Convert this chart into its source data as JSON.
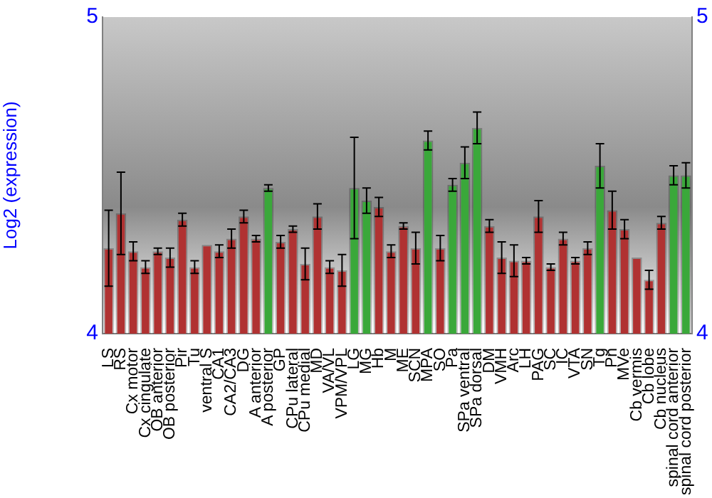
{
  "chart_data": {
    "type": "bar",
    "ylabel": "Log2 (expression)",
    "categories": [
      "LS",
      "RS",
      "Cx motor",
      "Cx cingulate",
      "OB anterior",
      "OB posterior",
      "Pir",
      "Tu",
      "ventral S",
      "CA1",
      "CA2/CA3",
      "DG",
      "A anterior",
      "A posterior",
      "GP",
      "CPu lateral",
      "CPu medial",
      "MD",
      "VA/VL",
      "VPM/VPL",
      "LG",
      "MG",
      "Hb",
      "M",
      "ME",
      "SCN",
      "MPA",
      "SO",
      "Pa",
      "SPa ventral",
      "SPa dorsal",
      "DM",
      "VMH",
      "Arc",
      "LH",
      "PAG",
      "SC",
      "IC",
      "VTA",
      "SN",
      "Tg",
      "Pn",
      "MVe",
      "Cb vermis",
      "Cb lobe",
      "Cb nucleus",
      "spinal cord anterior",
      "spinal cord posterior"
    ],
    "values": [
      4.27,
      4.38,
      4.26,
      4.21,
      4.26,
      4.24,
      4.36,
      4.21,
      4.28,
      4.26,
      4.3,
      4.37,
      4.3,
      4.46,
      4.29,
      4.33,
      4.22,
      4.37,
      4.21,
      4.2,
      4.46,
      4.42,
      4.4,
      4.26,
      4.34,
      4.27,
      4.61,
      4.27,
      4.47,
      4.54,
      4.65,
      4.34,
      4.24,
      4.23,
      4.23,
      4.37,
      4.21,
      4.3,
      4.23,
      4.27,
      4.53,
      4.39,
      4.33,
      4.24,
      4.17,
      4.35,
      4.5,
      4.5
    ],
    "errors": [
      0.12,
      0.13,
      0.03,
      0.02,
      0.01,
      0.03,
      0.02,
      0.02,
      null,
      0.02,
      0.03,
      0.02,
      0.01,
      0.01,
      0.02,
      0.01,
      0.05,
      0.04,
      0.02,
      0.05,
      0.16,
      0.04,
      0.03,
      0.02,
      0.01,
      0.05,
      0.03,
      0.04,
      0.02,
      0.05,
      0.05,
      0.02,
      0.05,
      0.05,
      0.01,
      0.05,
      0.01,
      0.02,
      0.01,
      0.02,
      0.07,
      0.06,
      0.03,
      null,
      0.03,
      0.02,
      0.03,
      0.04
    ],
    "colors": [
      "#b03232",
      "#b03232",
      "#b03232",
      "#b03232",
      "#b03232",
      "#b03232",
      "#b03232",
      "#b03232",
      "#b03232",
      "#b03232",
      "#b03232",
      "#b03232",
      "#b03232",
      "#3aa83a",
      "#b03232",
      "#b03232",
      "#b03232",
      "#b03232",
      "#b03232",
      "#b03232",
      "#3aa83a",
      "#3aa83a",
      "#b03232",
      "#b03232",
      "#b03232",
      "#b03232",
      "#3aa83a",
      "#b03232",
      "#3aa83a",
      "#3aa83a",
      "#3aa83a",
      "#b03232",
      "#b03232",
      "#b03232",
      "#b03232",
      "#b03232",
      "#b03232",
      "#b03232",
      "#b03232",
      "#b03232",
      "#3aa83a",
      "#b03232",
      "#b03232",
      "#b03232",
      "#b03232",
      "#b03232",
      "#3aa83a",
      "#3aa83a"
    ],
    "ylim": [
      4,
      5
    ],
    "yticks": [
      4,
      5
    ],
    "y2lim": [
      4,
      5
    ],
    "y2ticks": [
      4,
      5
    ],
    "grid": false,
    "legend": false
  }
}
